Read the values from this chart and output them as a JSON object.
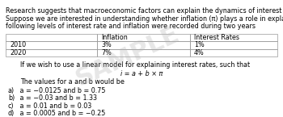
{
  "line1": "Research suggests that macroeconomic factors can explain the dynamics of interest rates (i) in the economy.",
  "line2": "Suppose we are interested in understanding whether inflation (π) plays a role in explaining interest rates. The",
  "line3": "following levels of interest rate and inflation were recorded during two years",
  "table_headers": [
    "",
    "Inflation",
    "Interest Rates"
  ],
  "table_rows": [
    [
      "2010",
      "3%",
      "1%"
    ],
    [
      "2020",
      "7%",
      "4%"
    ]
  ],
  "linear_model_text": "If we wish to use a linear model for explaining interest rates, such that",
  "formula_text": "i = a + b × π",
  "values_text": "The values for a and b would be",
  "options": [
    [
      "a)",
      " a = −0.0125 and b = 0.75"
    ],
    [
      "b)",
      " a = −0.03 and b = 1.33"
    ],
    [
      "c)",
      " a = 0.01 and b = 0.03"
    ],
    [
      "d)",
      " a = 0.0005 and b = −0.25"
    ]
  ],
  "watermark": "SAMPLE",
  "bg_color": "#ffffff",
  "text_color": "#000000",
  "fs": 5.8
}
